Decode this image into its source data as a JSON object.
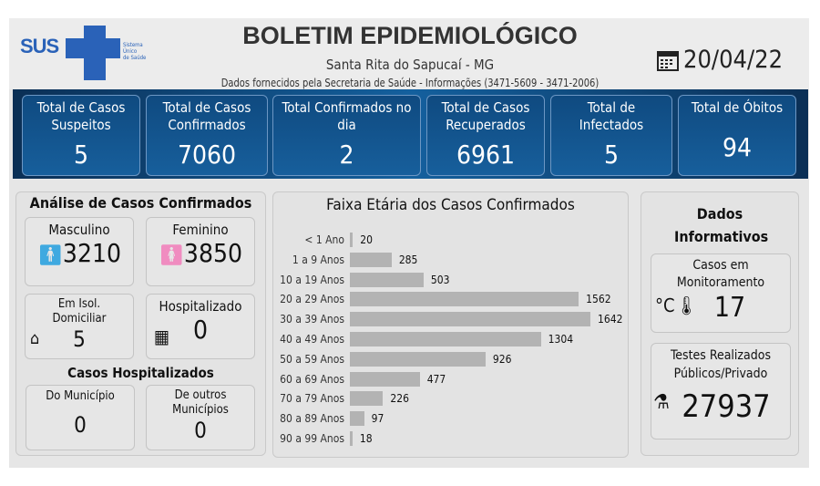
{
  "header": {
    "logo_text": "SUS",
    "logo_sub": [
      "Sistema",
      "Único",
      "de Saúde"
    ],
    "title": "BOLETIM EPIDEMIOLÓGICO",
    "city": "Santa Rita do Sapucaí - MG",
    "source": "Dados fornecidos pela Secretaria de Saúde - Informações (3471-5609 - 3471-2006)",
    "date": "20/04/22",
    "date_icon": "calendar-icon"
  },
  "cards": [
    {
      "label": "Total de Casos Suspeitos",
      "value": "5"
    },
    {
      "label": "Total de Casos Confirmados",
      "value": "7060"
    },
    {
      "label": "Total Confirmados no dia",
      "value": "2"
    },
    {
      "label": "Total de Casos Recuperados",
      "value": "6961"
    },
    {
      "label": "Total de Infectados",
      "value": "5"
    },
    {
      "label": "Total de Óbitos",
      "value": "94"
    }
  ],
  "analysis": {
    "title": "Análise de Casos Confirmados",
    "male_label": "Masculino",
    "male": "3210",
    "female_label": "Feminino",
    "female": "3850",
    "isol_label": "Em Isol. Domiciliar",
    "isol": "5",
    "hosp_label": "Hospitalizado",
    "hosp": "0",
    "hosp_title": "Casos Hospitalizados",
    "mun_label": "Do Município",
    "mun": "0",
    "other_label": "De outros Municípios",
    "other": "0"
  },
  "info": {
    "title": "Dados Informativos",
    "monitor_label": "Casos em Monitoramento",
    "monitor": "17",
    "tests_label": "Testes Realizados Públicos/Privado",
    "tests": "27937"
  },
  "colors": {
    "band": "#0b2f55",
    "male": "#3fa9e0",
    "female": "#f08cc0",
    "bar": "#b3b3b3",
    "logo": "#2a62b8"
  },
  "chart_data": {
    "type": "bar",
    "orientation": "horizontal",
    "title": "Faixa Etária dos Casos Confirmados",
    "categories": [
      "< 1 Ano",
      "1 a 9 Anos",
      "10 a 19 Anos",
      "20 a 29 Anos",
      "30 a 39 Anos",
      "40 a 49 Anos",
      "50 a 59 Anos",
      "60 a 69 Anos",
      "70 a 79 Anos",
      "80 a 89 Anos",
      "90 a 99 Anos"
    ],
    "values": [
      20,
      285,
      503,
      1562,
      1642,
      1304,
      926,
      477,
      226,
      97,
      18
    ],
    "grid": false
  }
}
